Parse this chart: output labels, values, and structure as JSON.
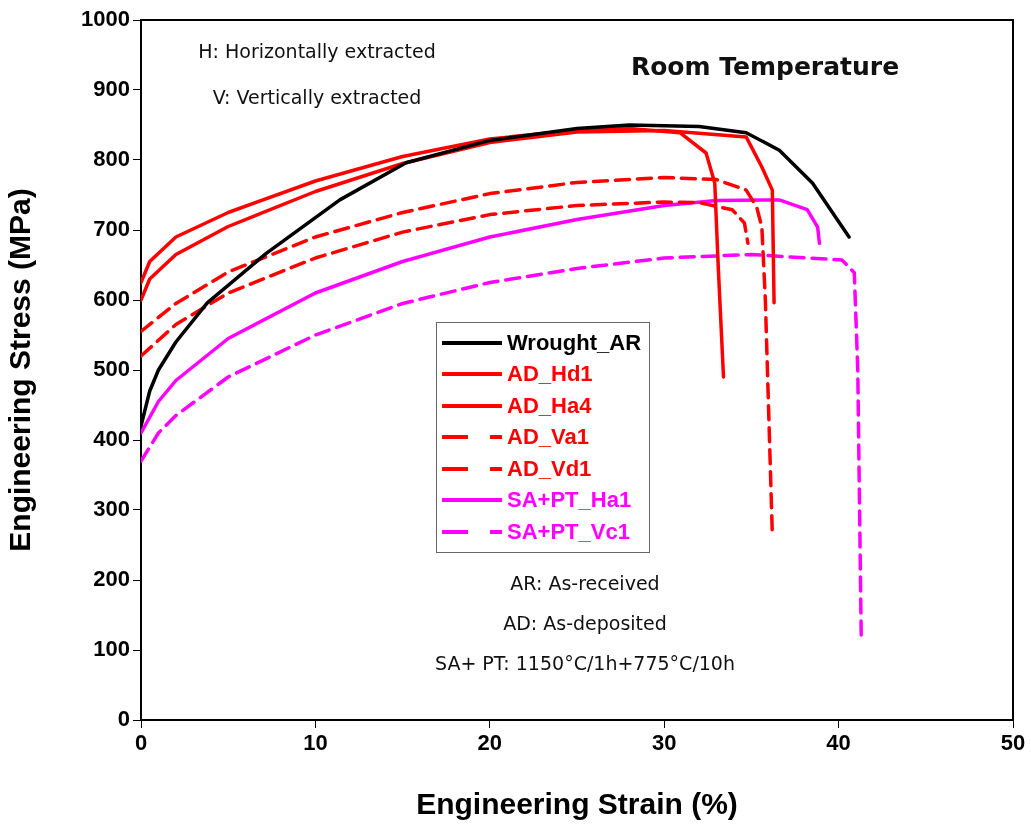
{
  "chart_data": {
    "type": "line",
    "xlabel": "Engineering Strain (%)",
    "ylabel": "Engineering Stress (MPa)",
    "xlim": [
      0,
      50
    ],
    "xticks": [
      0,
      10,
      20,
      30,
      40,
      50
    ],
    "ylim": [
      0,
      1000
    ],
    "yticks": [
      0,
      100,
      200,
      300,
      400,
      500,
      600,
      700,
      800,
      900,
      1000
    ],
    "grid": false,
    "legend": "center",
    "marker": "none",
    "annotations": [
      "H: Horizontally extracted",
      "V: Vertically extracted",
      "Room Temperature",
      "AR: As-received",
      "AD: As-deposited",
      "SA+ PT: 1150°C/1h+775°C/10h"
    ],
    "series": [
      {
        "name": "Wrought_AR",
        "color": "#000000",
        "line_style": "solid",
        "x": [
          0,
          0.5,
          1,
          2,
          3.8,
          7.2,
          11.4,
          15.2,
          20,
          25,
          28,
          32,
          34.7,
          36.6,
          38.5,
          40.6
        ],
        "values": [
          420,
          470,
          500,
          540,
          596,
          667,
          743,
          796,
          828,
          845,
          850,
          848,
          839,
          814,
          767,
          690
        ]
      },
      {
        "name": "AD_Hd1",
        "color": "#ff0000",
        "line_style": "solid",
        "x": [
          0,
          0.5,
          2,
          5,
          10,
          15,
          20,
          25,
          28,
          30.9,
          32.4,
          32.9,
          33.1,
          33.4
        ],
        "values": [
          625,
          655,
          690,
          725,
          770,
          805,
          830,
          843,
          845,
          839,
          810,
          767,
          647,
          490
        ]
      },
      {
        "name": "AD_Ha4",
        "color": "#ff0000",
        "line_style": "solid",
        "x": [
          0,
          0.5,
          2,
          5,
          10,
          15,
          20,
          25,
          30,
          34.7,
          35.6,
          36.2,
          36.3
        ],
        "values": [
          600,
          630,
          665,
          705,
          755,
          795,
          825,
          840,
          842,
          833,
          790,
          757,
          596
        ]
      },
      {
        "name": "AD_Va1",
        "color": "#ff0000",
        "line_style": "dashed",
        "x": [
          0,
          2,
          5,
          10,
          15,
          20,
          25,
          30,
          33,
          34.7,
          35.3,
          35.6,
          35.8,
          36.2
        ],
        "values": [
          555,
          595,
          640,
          690,
          725,
          752,
          768,
          775,
          772,
          757,
          733,
          704,
          600,
          265
        ]
      },
      {
        "name": "AD_Vd1",
        "color": "#ff0000",
        "line_style": "dashed",
        "x": [
          0,
          2,
          5,
          10,
          15,
          20,
          25,
          30,
          32,
          33.9,
          34.6,
          34.8
        ],
        "values": [
          520,
          565,
          610,
          660,
          697,
          722,
          735,
          740,
          739,
          729,
          710,
          681
        ]
      },
      {
        "name": "SA+PT_Ha1",
        "color": "#ff00ff",
        "line_style": "solid",
        "x": [
          0,
          1,
          2,
          5,
          10,
          15,
          20,
          25,
          30,
          33,
          36.6,
          38.2,
          38.8,
          38.9
        ],
        "values": [
          410,
          455,
          485,
          545,
          610,
          655,
          690,
          715,
          735,
          742,
          743,
          729,
          704,
          681
        ]
      },
      {
        "name": "SA+PT_Vc1",
        "color": "#ff00ff",
        "line_style": "dashed",
        "x": [
          0,
          1,
          2,
          5,
          10,
          15,
          20,
          25,
          30,
          35,
          40.2,
          40.9,
          41.1,
          41.3
        ],
        "values": [
          370,
          410,
          435,
          490,
          550,
          595,
          625,
          645,
          660,
          665,
          657,
          639,
          500,
          114
        ]
      }
    ]
  }
}
